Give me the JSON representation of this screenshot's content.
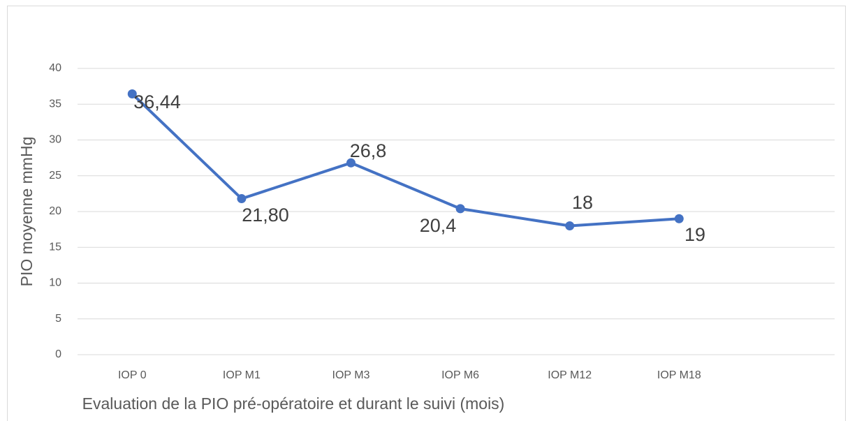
{
  "chart_data": {
    "type": "line",
    "categories": [
      "IOP 0",
      "IOP M1",
      "IOP M3",
      "IOP M6",
      "IOP M12",
      "IOP M18"
    ],
    "series": [
      {
        "name": "PIO moyenne",
        "color": "#4472c4",
        "values": [
          36.44,
          21.8,
          26.8,
          20.4,
          18,
          19
        ],
        "value_labels": [
          "36,44",
          "21,80",
          "26,8",
          "20,4",
          "18",
          "19"
        ]
      }
    ],
    "ylim": [
      0,
      40
    ],
    "yticks": [
      0,
      5,
      10,
      15,
      20,
      25,
      30,
      35,
      40
    ],
    "grid": true,
    "xlabel": "Evaluation de la PIO pré-opératoire et durant le suivi (mois)",
    "ylabel": "PIO moyenne mmHg"
  }
}
